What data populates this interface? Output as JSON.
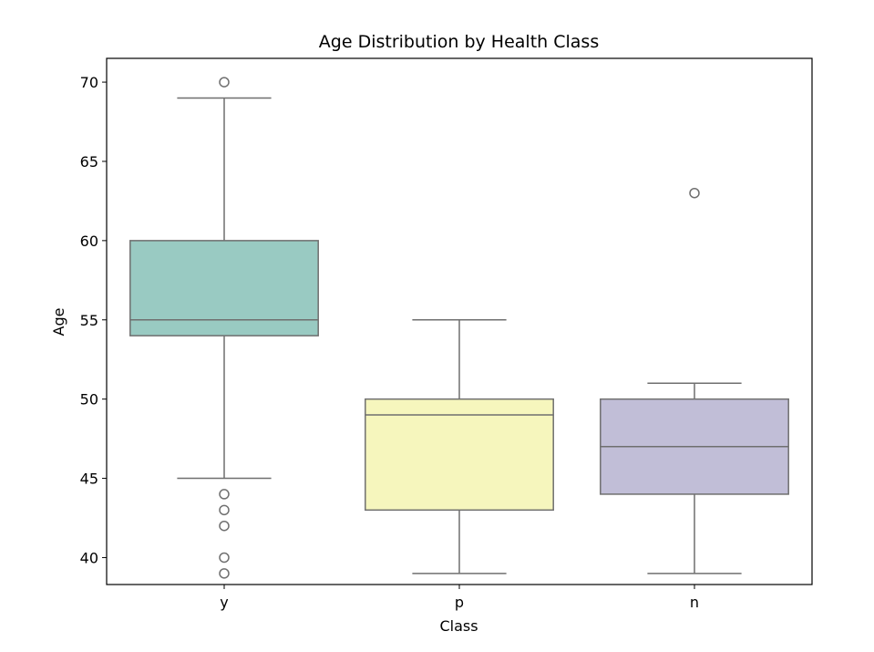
{
  "chart_data": {
    "type": "box",
    "title": "Age Distribution by Health Class",
    "xlabel": "Class",
    "ylabel": "Age",
    "ylim": [
      38.3,
      71.5
    ],
    "yticks": [
      40,
      45,
      50,
      55,
      60,
      65,
      70
    ],
    "grid": false,
    "categories": [
      "y",
      "p",
      "n"
    ],
    "boxes": [
      {
        "category": "y",
        "color": "#99cac2",
        "whisker_low": 45,
        "q1": 54,
        "median": 55,
        "q3": 60,
        "whisker_high": 69,
        "outliers": [
          70,
          44,
          43,
          42,
          40,
          39
        ]
      },
      {
        "category": "p",
        "color": "#f6f6bd",
        "whisker_low": 39,
        "q1": 43,
        "median": 49,
        "q3": 50,
        "whisker_high": 55,
        "outliers": []
      },
      {
        "category": "n",
        "color": "#c1bed7",
        "whisker_low": 39,
        "q1": 44,
        "median": 47,
        "q3": 50,
        "whisker_high": 51,
        "outliers": [
          63
        ]
      }
    ]
  }
}
